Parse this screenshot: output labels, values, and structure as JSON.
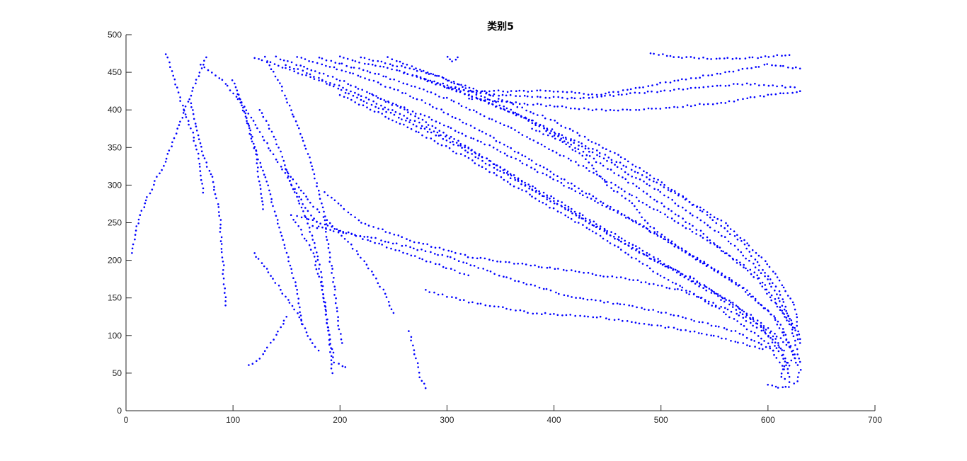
{
  "chart_data": {
    "type": "scatter",
    "title": "类别5",
    "xlabel": "",
    "ylabel": "",
    "xlim": [
      0,
      700
    ],
    "ylim": [
      0,
      500
    ],
    "x_ticks": [
      0,
      100,
      200,
      300,
      400,
      500,
      600,
      700
    ],
    "y_ticks": [
      0,
      50,
      100,
      150,
      200,
      250,
      300,
      350,
      400,
      450,
      500
    ],
    "grid": false,
    "legend": "none",
    "marker_color": "#0000ff",
    "axis_color": "#262626",
    "series": [
      {
        "name": "",
        "color": "#0000ff",
        "curves": [
          [
            [
              38,
              475
            ],
            [
              45,
              440
            ],
            [
              55,
              395
            ],
            [
              62,
              370
            ],
            [
              68,
              335
            ],
            [
              72,
              290
            ]
          ],
          [
            [
              5,
              210
            ],
            [
              10,
              245
            ],
            [
              20,
              285
            ],
            [
              35,
              325
            ],
            [
              50,
              380
            ],
            [
              60,
              420
            ],
            [
              75,
              470
            ]
          ],
          [
            [
              60,
              410
            ],
            [
              70,
              350
            ],
            [
              80,
              310
            ],
            [
              87,
              270
            ],
            [
              90,
              210
            ],
            [
              93,
              140
            ]
          ],
          [
            [
              70,
              460
            ],
            [
              90,
              440
            ],
            [
              110,
              405
            ],
            [
              125,
              370
            ],
            [
              140,
              335
            ],
            [
              155,
              300
            ],
            [
              168,
              270
            ],
            [
              180,
              245
            ]
          ],
          [
            [
              105,
              420
            ],
            [
              115,
              375
            ],
            [
              122,
              340
            ],
            [
              125,
              300
            ],
            [
              128,
              268
            ]
          ],
          [
            [
              100,
              440
            ],
            [
              110,
              400
            ],
            [
              120,
              350
            ],
            [
              130,
              310
            ],
            [
              140,
              260
            ],
            [
              150,
              210
            ],
            [
              160,
              160
            ],
            [
              165,
              115
            ]
          ],
          [
            [
              130,
              470
            ],
            [
              145,
              430
            ],
            [
              160,
              380
            ],
            [
              175,
              320
            ],
            [
              185,
              265
            ],
            [
              190,
              210
            ],
            [
              195,
              160
            ],
            [
              198,
              120
            ],
            [
              202,
              90
            ]
          ],
          [
            [
              125,
              400
            ],
            [
              140,
              360
            ],
            [
              155,
              300
            ],
            [
              170,
              250
            ],
            [
              180,
              200
            ],
            [
              185,
              150
            ],
            [
              190,
              100
            ],
            [
              193,
              50
            ]
          ],
          [
            [
              120,
              210
            ],
            [
              140,
              170
            ],
            [
              160,
              130
            ],
            [
              170,
              100
            ],
            [
              180,
              80
            ]
          ],
          [
            [
              150,
              320
            ],
            [
              170,
              280
            ],
            [
              190,
              250
            ],
            [
              210,
              220
            ],
            [
              225,
              195
            ],
            [
              240,
              160
            ],
            [
              250,
              130
            ]
          ],
          [
            [
              160,
              260
            ],
            [
              200,
              240
            ],
            [
              240,
              220
            ],
            [
              270,
              205
            ],
            [
              300,
              190
            ],
            [
              320,
              180
            ]
          ],
          [
            [
              155,
              260
            ],
            [
              175,
              210
            ],
            [
              185,
              150
            ],
            [
              190,
              100
            ],
            [
              195,
              65
            ],
            [
              205,
              58
            ]
          ],
          [
            [
              185,
              290
            ],
            [
              220,
              250
            ],
            [
              270,
              225
            ],
            [
              320,
              205
            ],
            [
              370,
              195
            ],
            [
              420,
              185
            ],
            [
              470,
              175
            ],
            [
              520,
              160
            ],
            [
              570,
              130
            ],
            [
              600,
              100
            ],
            [
              615,
              70
            ],
            [
              620,
              45
            ]
          ],
          [
            [
              175,
              245
            ],
            [
              230,
              230
            ],
            [
              300,
              205
            ],
            [
              360,
              175
            ],
            [
              420,
              150
            ],
            [
              470,
              140
            ],
            [
              520,
              125
            ],
            [
              570,
              105
            ],
            [
              605,
              80
            ]
          ],
          [
            [
              280,
              160
            ],
            [
              320,
              145
            ],
            [
              380,
              130
            ],
            [
              440,
              125
            ],
            [
              500,
              112
            ],
            [
              550,
              100
            ],
            [
              595,
              82
            ]
          ],
          [
            [
              265,
              105
            ],
            [
              270,
              75
            ],
            [
              275,
              45
            ],
            [
              280,
              30
            ]
          ],
          [
            [
              115,
              60
            ],
            [
              125,
              70
            ],
            [
              135,
              90
            ],
            [
              145,
              110
            ],
            [
              150,
              125
            ]
          ],
          [
            [
              120,
              470
            ],
            [
              180,
              440
            ],
            [
              240,
              400
            ],
            [
              300,
              360
            ],
            [
              360,
              310
            ],
            [
              420,
              260
            ],
            [
              480,
              210
            ],
            [
              530,
              175
            ],
            [
              570,
              140
            ],
            [
              600,
              110
            ],
            [
              620,
              85
            ]
          ],
          [
            [
              140,
              470
            ],
            [
              200,
              440
            ],
            [
              260,
              400
            ],
            [
              320,
              350
            ],
            [
              380,
              295
            ],
            [
              440,
              245
            ],
            [
              500,
              195
            ],
            [
              550,
              155
            ],
            [
              590,
              115
            ],
            [
              615,
              80
            ]
          ],
          [
            [
              160,
              470
            ],
            [
              220,
              445
            ],
            [
              280,
              410
            ],
            [
              340,
              365
            ],
            [
              400,
              315
            ],
            [
              460,
              265
            ],
            [
              520,
              215
            ],
            [
              570,
              170
            ],
            [
              605,
              125
            ],
            [
              625,
              75
            ]
          ],
          [
            [
              180,
              470
            ],
            [
              240,
              445
            ],
            [
              300,
              415
            ],
            [
              360,
              375
            ],
            [
              420,
              330
            ],
            [
              480,
              280
            ],
            [
              540,
              230
            ],
            [
              590,
              180
            ],
            [
              620,
              120
            ],
            [
              630,
              65
            ]
          ],
          [
            [
              200,
              470
            ],
            [
              260,
              450
            ],
            [
              320,
              420
            ],
            [
              380,
              385
            ],
            [
              440,
              340
            ],
            [
              500,
              290
            ],
            [
              560,
              230
            ],
            [
              600,
              175
            ],
            [
              625,
              110
            ]
          ],
          [
            [
              220,
              470
            ],
            [
              280,
              450
            ],
            [
              340,
              420
            ],
            [
              400,
              385
            ],
            [
              460,
              340
            ],
            [
              520,
              285
            ],
            [
              575,
              225
            ],
            [
              610,
              160
            ],
            [
              628,
              95
            ]
          ],
          [
            [
              245,
              470
            ],
            [
              300,
              440
            ],
            [
              360,
              400
            ],
            [
              420,
              350
            ],
            [
              480,
              295
            ],
            [
              540,
              235
            ],
            [
              590,
              175
            ],
            [
              620,
              115
            ]
          ],
          [
            [
              150,
              460
            ],
            [
              210,
              425
            ],
            [
              270,
              385
            ],
            [
              330,
              340
            ],
            [
              390,
              290
            ],
            [
              450,
              240
            ],
            [
              510,
              190
            ],
            [
              565,
              145
            ],
            [
              605,
              100
            ],
            [
              620,
              60
            ]
          ],
          [
            [
              200,
              420
            ],
            [
              260,
              380
            ],
            [
              320,
              335
            ],
            [
              380,
              285
            ],
            [
              440,
              235
            ],
            [
              500,
              180
            ],
            [
              555,
              135
            ],
            [
              600,
              90
            ],
            [
              615,
              55
            ]
          ],
          [
            [
              230,
              420
            ],
            [
              290,
              385
            ],
            [
              350,
              345
            ],
            [
              410,
              300
            ],
            [
              470,
              255
            ],
            [
              530,
              205
            ],
            [
              580,
              160
            ],
            [
              612,
              115
            ],
            [
              625,
              70
            ]
          ],
          [
            [
              260,
              450
            ],
            [
              320,
              420
            ],
            [
              380,
              385
            ],
            [
              440,
              345
            ],
            [
              500,
              300
            ],
            [
              560,
              250
            ],
            [
              600,
              195
            ],
            [
              625,
              140
            ],
            [
              630,
              90
            ]
          ],
          [
            [
              380,
              375
            ],
            [
              405,
              360
            ],
            [
              430,
              335
            ],
            [
              450,
              300
            ],
            [
              470,
              280
            ],
            [
              490,
              245
            ],
            [
              510,
              225
            ],
            [
              540,
              195
            ],
            [
              570,
              170
            ]
          ],
          [
            [
              280,
              440
            ],
            [
              320,
              425
            ],
            [
              360,
              425
            ],
            [
              400,
              425
            ],
            [
              440,
              420
            ],
            [
              480,
              430
            ],
            [
              520,
              440
            ],
            [
              560,
              450
            ],
            [
              600,
              460
            ],
            [
              630,
              455
            ]
          ],
          [
            [
              300,
              430
            ],
            [
              340,
              420
            ],
            [
              380,
              418
            ],
            [
              420,
              415
            ],
            [
              460,
              420
            ],
            [
              500,
              425
            ],
            [
              540,
              430
            ],
            [
              580,
              435
            ],
            [
              625,
              430
            ]
          ],
          [
            [
              320,
              415
            ],
            [
              360,
              410
            ],
            [
              400,
              405
            ],
            [
              440,
              400
            ],
            [
              480,
              400
            ],
            [
              520,
              405
            ],
            [
              560,
              410
            ],
            [
              600,
              420
            ],
            [
              630,
              425
            ]
          ],
          [
            [
              490,
              475
            ],
            [
              520,
              470
            ],
            [
              555,
              468
            ],
            [
              590,
              470
            ],
            [
              620,
              473
            ]
          ],
          [
            [
              300,
              470
            ],
            [
              305,
              465
            ],
            [
              310,
              470
            ]
          ],
          [
            [
              600,
              35
            ],
            [
              610,
              30
            ],
            [
              620,
              32
            ],
            [
              628,
              40
            ],
            [
              630,
              55
            ],
            [
              625,
              70
            ],
            [
              615,
              60
            ],
            [
              612,
              45
            ],
            [
              620,
              38
            ]
          ]
        ]
      }
    ]
  }
}
